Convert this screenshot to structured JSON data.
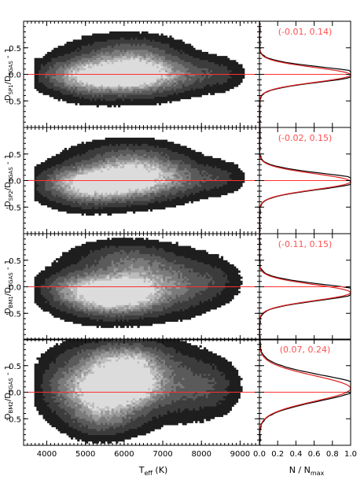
{
  "chart_data": {
    "type": "heatmap",
    "x_axis": {
      "label": "T",
      "label_sub": "eff",
      "label_suffix": " (K)",
      "range": [
        3400,
        9500
      ],
      "ticks": [
        "4000",
        "5000",
        "6000",
        "7000",
        "8000",
        "9000"
      ],
      "tick_values": [
        4000,
        5000,
        6000,
        7000,
        8000,
        9000
      ]
    },
    "y_axis": {
      "range": [
        -1.0,
        1.0
      ],
      "ticks": [
        "0.5",
        "0.0",
        "-0.5"
      ],
      "tick_values": [
        0.5,
        0.0,
        -0.5
      ]
    },
    "hist_axis": {
      "label": "N / N",
      "label_sub": "max",
      "range": [
        0,
        1.0
      ],
      "ticks": [
        "0.0",
        "0.2",
        "0.4",
        "0.6",
        "0.8",
        "1.0"
      ],
      "tick_values": [
        0,
        0.2,
        0.4,
        0.6,
        0.8,
        1.0
      ]
    },
    "reference_line": 0.0,
    "colors": {
      "reference": "#ff3030",
      "annotation": "#ff5050",
      "histogram": "#000000",
      "fit": "#e02020"
    },
    "panels": [
      {
        "ylabel_main": "D",
        "ylabel_sub1": "SP1",
        "ylabel_mid": "/D",
        "ylabel_sub2": "TGAS",
        "ylabel_end": " - 1",
        "gauss_fit": "(-0.01, 0.14)",
        "mu": -0.01,
        "sigma": 0.14,
        "density_blobs": [
          {
            "x": 6000,
            "y": 0.0,
            "sx": 700,
            "sy": 0.2,
            "w": 1.0
          },
          {
            "x": 5200,
            "y": -0.05,
            "sx": 550,
            "sy": 0.22,
            "w": 0.6
          },
          {
            "x": 6500,
            "y": 0.05,
            "sx": 600,
            "sy": 0.25,
            "w": 0.6
          },
          {
            "x": 4500,
            "y": 0.0,
            "sx": 500,
            "sy": 0.18,
            "w": 0.35
          },
          {
            "x": 7500,
            "y": 0.0,
            "sx": 450,
            "sy": 0.2,
            "w": 0.3
          },
          {
            "x": 8400,
            "y": 0.0,
            "sx": 400,
            "sy": 0.18,
            "w": 0.2
          },
          {
            "x": 6000,
            "y": 0.45,
            "sx": 800,
            "sy": 0.18,
            "w": 0.25
          }
        ]
      },
      {
        "ylabel_main": "D",
        "ylabel_sub1": "SP2",
        "ylabel_mid": "/D",
        "ylabel_sub2": "TGAS",
        "ylabel_end": " - 1",
        "gauss_fit": "(-0.02, 0.15)",
        "mu": -0.02,
        "sigma": 0.15,
        "density_blobs": [
          {
            "x": 5900,
            "y": 0.0,
            "sx": 700,
            "sy": 0.22,
            "w": 1.0
          },
          {
            "x": 5100,
            "y": -0.1,
            "sx": 550,
            "sy": 0.22,
            "w": 0.6
          },
          {
            "x": 6600,
            "y": 0.1,
            "sx": 600,
            "sy": 0.25,
            "w": 0.55
          },
          {
            "x": 4500,
            "y": -0.05,
            "sx": 500,
            "sy": 0.2,
            "w": 0.35
          },
          {
            "x": 7500,
            "y": 0.05,
            "sx": 450,
            "sy": 0.2,
            "w": 0.3
          },
          {
            "x": 8400,
            "y": 0.05,
            "sx": 400,
            "sy": 0.18,
            "w": 0.2
          },
          {
            "x": 6000,
            "y": 0.45,
            "sx": 800,
            "sy": 0.18,
            "w": 0.25
          }
        ]
      },
      {
        "ylabel_main": "D",
        "ylabel_sub1": "BM1",
        "ylabel_mid": "/D",
        "ylabel_sub2": "TGAS",
        "ylabel_end": " - 1",
        "gauss_fit": "(-0.11, 0.15)",
        "mu": -0.11,
        "sigma": 0.15,
        "density_blobs": [
          {
            "x": 5900,
            "y": -0.15,
            "sx": 650,
            "sy": 0.22,
            "w": 1.0
          },
          {
            "x": 5200,
            "y": -0.1,
            "sx": 550,
            "sy": 0.25,
            "w": 0.6
          },
          {
            "x": 6500,
            "y": 0.05,
            "sx": 600,
            "sy": 0.3,
            "w": 0.55
          },
          {
            "x": 4500,
            "y": -0.05,
            "sx": 450,
            "sy": 0.2,
            "w": 0.3
          },
          {
            "x": 7500,
            "y": 0.05,
            "sx": 450,
            "sy": 0.3,
            "w": 0.3
          },
          {
            "x": 8300,
            "y": 0.1,
            "sx": 400,
            "sy": 0.25,
            "w": 0.2
          },
          {
            "x": 6000,
            "y": 0.5,
            "sx": 800,
            "sy": 0.2,
            "w": 0.3
          }
        ]
      },
      {
        "ylabel_main": "D",
        "ylabel_sub1": "BM2",
        "ylabel_mid": "/D",
        "ylabel_sub2": "TGAS",
        "ylabel_end": " - 1",
        "gauss_fit": "(0.07, 0.24)",
        "mu": 0.07,
        "sigma": 0.24,
        "density_blobs": [
          {
            "x": 5900,
            "y": 0.15,
            "sx": 600,
            "sy": 0.3,
            "w": 1.0
          },
          {
            "x": 5300,
            "y": 0.0,
            "sx": 500,
            "sy": 0.35,
            "w": 0.7
          },
          {
            "x": 6400,
            "y": 0.25,
            "sx": 500,
            "sy": 0.35,
            "w": 0.6
          },
          {
            "x": 4500,
            "y": 0.1,
            "sx": 450,
            "sy": 0.3,
            "w": 0.35
          },
          {
            "x": 7500,
            "y": 0.15,
            "sx": 500,
            "sy": 0.35,
            "w": 0.3
          },
          {
            "x": 8300,
            "y": 0.1,
            "sx": 400,
            "sy": 0.3,
            "w": 0.2
          },
          {
            "x": 5800,
            "y": 0.65,
            "sx": 800,
            "sy": 0.2,
            "w": 0.4
          },
          {
            "x": 5500,
            "y": -0.5,
            "sx": 600,
            "sy": 0.2,
            "w": 0.3
          }
        ]
      }
    ]
  }
}
